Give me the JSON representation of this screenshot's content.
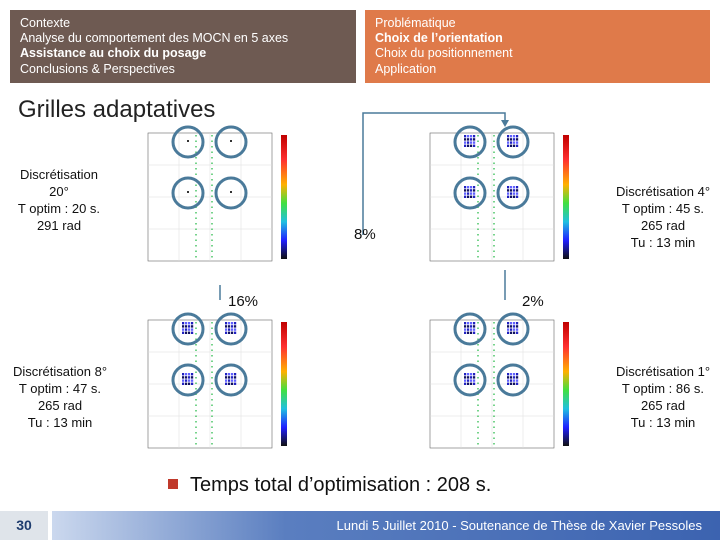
{
  "header_left": {
    "lines": [
      "Contexte",
      "Analyse du comportement des MOCN en 5 axes",
      "Assistance au choix du posage",
      "Conclusions & Perspectives"
    ]
  },
  "header_right": {
    "lines": [
      "Problématique",
      "Choix de l’orientation",
      "Choix du positionnement",
      "Application"
    ]
  },
  "slide_title": "Grilles adaptatives",
  "panels": {
    "tl": {
      "label": [
        "Discrétisation",
        "20°",
        "T optim : 20 s.",
        "291 rad"
      ]
    },
    "tr": {
      "label": [
        "Discrétisation 4°",
        "T optim : 45 s.",
        "265 rad",
        "Tu : 13 min"
      ]
    },
    "bl": {
      "label": [
        "Discrétisation 8°",
        "T optim : 47 s.",
        "265 rad",
        "Tu : 13 min"
      ]
    },
    "br": {
      "label": [
        "Discrétisation 1°",
        "T optim : 86 s.",
        "265 rad",
        "Tu : 13 min"
      ]
    }
  },
  "percentages": {
    "right_top": "8%",
    "left_mid": "16%",
    "right_mid": "2%"
  },
  "conclusion": "Temps total d’optimisation : 208 s.",
  "footer": {
    "page": "30",
    "text": "Lundi 5 Juillet 2010 - Soutenance de Thèse de Xavier Pessoles"
  },
  "colors": {
    "header_left": "#6e5a52",
    "header_right": "#df7a4a",
    "footer": "#3c63b0",
    "circle": "#4a7a9a"
  }
}
